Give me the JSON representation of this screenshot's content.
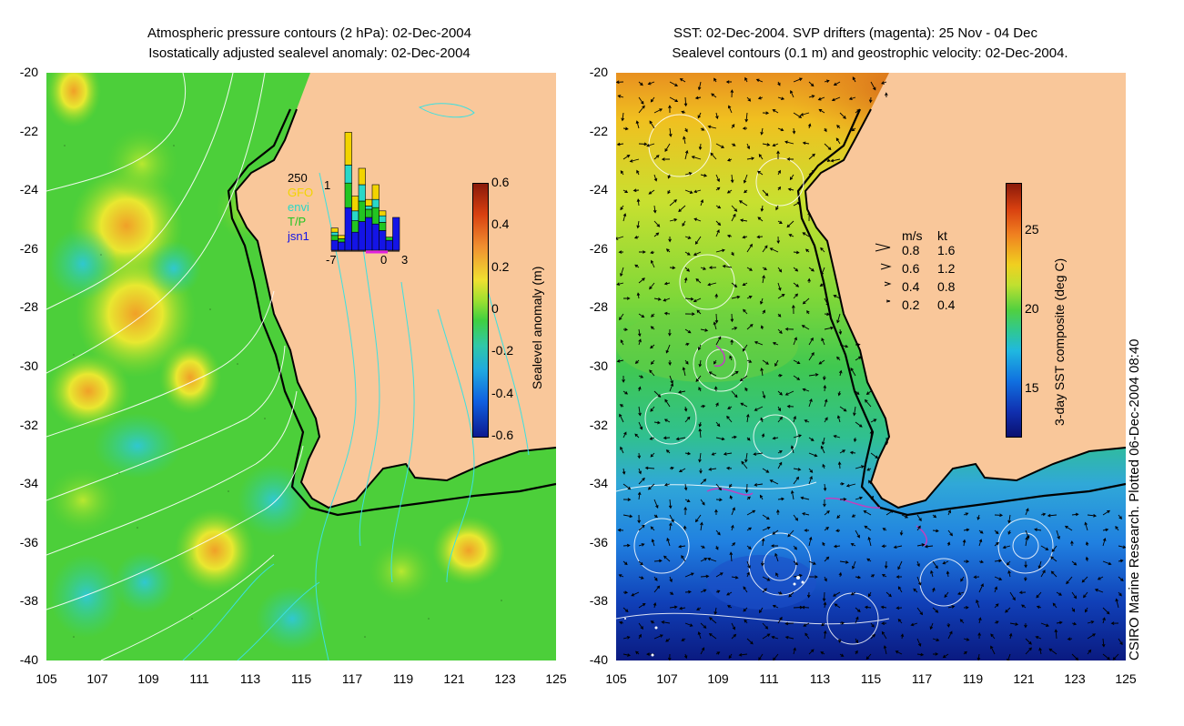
{
  "left_panel": {
    "title_line1": "Atmospheric pressure contours (2 hPa): 02-Dec-2004",
    "title_line2": "Isostatically adjusted sealevel anomaly: 02-Dec-2004",
    "colorbar": {
      "label": "Sealevel anomaly (m)",
      "ticks": [
        "0.6",
        "0.4",
        "0.2",
        "0",
        "-0.2",
        "-0.4",
        "-0.6"
      ],
      "range": [
        -0.6,
        0.6
      ]
    },
    "histogram": {
      "ymax_label": "250",
      "y1_label": "1",
      "satellites": [
        "GFO",
        "envi",
        "T/P",
        "jsn1"
      ],
      "satellite_colors": [
        "#f2d400",
        "#29d8c8",
        "#22c522",
        "#1414e6"
      ],
      "x_ticks": [
        "-7",
        "0",
        "3"
      ],
      "stacked_counts": [
        {
          "day": -7,
          "values": [
            5,
            4,
            6,
            12
          ]
        },
        {
          "day": -6,
          "values": [
            4,
            0,
            4,
            10
          ]
        },
        {
          "day": -5,
          "values": [
            40,
            22,
            30,
            52
          ]
        },
        {
          "day": -4,
          "values": [
            18,
            12,
            14,
            22
          ]
        },
        {
          "day": -3,
          "values": [
            20,
            20,
            25,
            35
          ]
        },
        {
          "day": -2,
          "values": [
            8,
            4,
            10,
            40
          ]
        },
        {
          "day": -1,
          "values": [
            18,
            10,
            20,
            32
          ]
        },
        {
          "day": 0,
          "values": [
            6,
            8,
            10,
            24
          ]
        },
        {
          "day": 1,
          "values": [
            0,
            0,
            4,
            12
          ]
        },
        {
          "day": 2,
          "values": [
            0,
            0,
            0,
            40
          ]
        }
      ]
    }
  },
  "right_panel": {
    "title_line1": "SST: 02-Dec-2004. SVP drifters (magenta): 25 Nov - 04 Dec",
    "title_line2": "Sealevel contours (0.1 m) and geostrophic velocity: 02-Dec-2004.",
    "colorbar": {
      "label": "3-day SST composite (deg C)",
      "ticks": [
        "25",
        "20",
        "15"
      ],
      "range": [
        12,
        28
      ]
    },
    "velocity_legend": {
      "header_ms": "m/s",
      "header_kt": "kt",
      "rows": [
        {
          "ms": "0.8",
          "kt": "1.6"
        },
        {
          "ms": "0.6",
          "kt": "1.2"
        },
        {
          "ms": "0.4",
          "kt": "0.8"
        },
        {
          "ms": "0.2",
          "kt": "0.4"
        }
      ]
    }
  },
  "axes": {
    "y_labels": [
      "-20",
      "-22",
      "-24",
      "-26",
      "-28",
      "-30",
      "-32",
      "-34",
      "-36",
      "-38",
      "-40"
    ],
    "x_labels": [
      "105",
      "107",
      "109",
      "111",
      "113",
      "115",
      "117",
      "119",
      "121",
      "123",
      "125"
    ],
    "lat_range": [
      -40,
      -20
    ],
    "lon_range": [
      105,
      125
    ]
  },
  "credit": "CSIRO Marine Research. Plotted 06-Dec-2004 08:40",
  "colors": {
    "land": "#f9c79a",
    "coast": "#000000"
  }
}
